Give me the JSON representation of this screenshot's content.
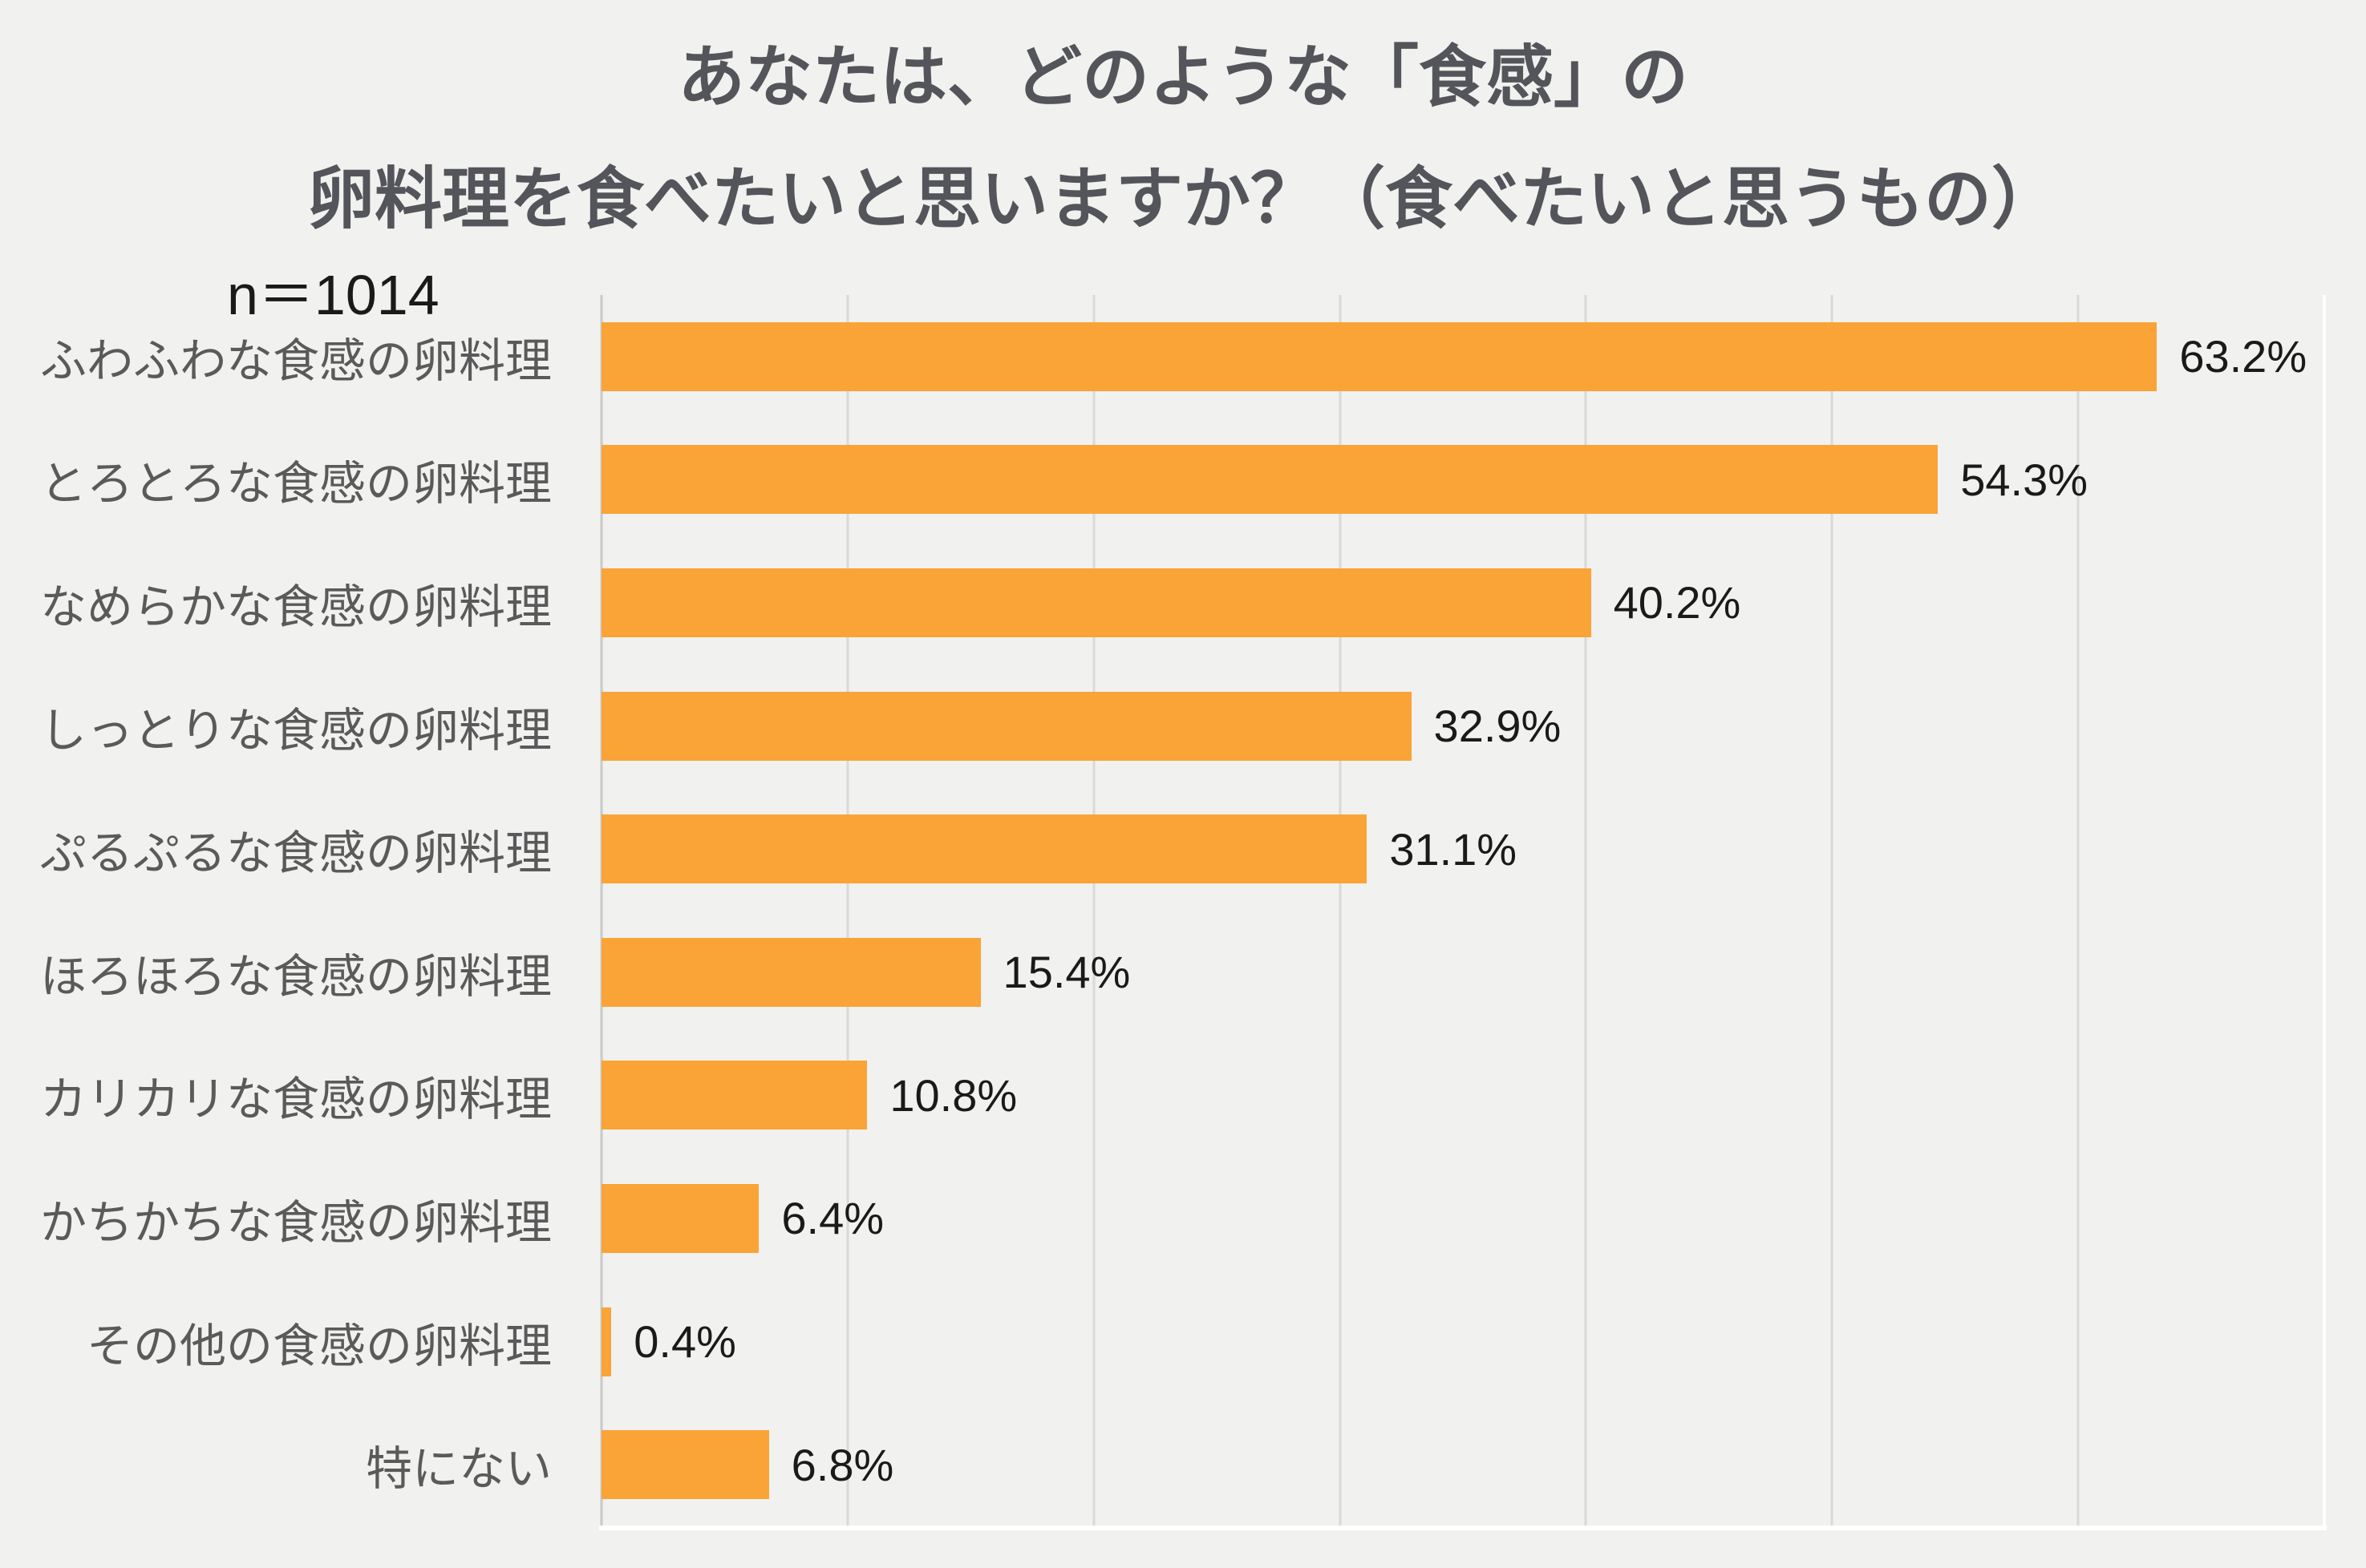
{
  "chart": {
    "title_line1": "あなたは、どのような「食感」の",
    "title_line2": "卵料理を食べたいと思いますか？（食べたいと思うもの）",
    "n_label": "n＝1014"
  },
  "chart_data": {
    "type": "bar",
    "orientation": "horizontal",
    "title": "あなたは、どのような「食感」の卵料理を食べたいと思いますか？（食べたいと思うもの）",
    "sample_size_label": "n＝1014",
    "sample_size": 1014,
    "categories": [
      "ふわふわな食感の卵料理",
      "とろとろな食感の卵料理",
      "なめらかな食感の卵料理",
      "しっとりな食感の卵料理",
      "ぷるぷるな食感の卵料理",
      "ほろほろな食感の卵料理",
      "カリカリな食感の卵料理",
      "かちかちな食感の卵料理",
      "その他の食感の卵料理",
      "特にない"
    ],
    "values": [
      63.2,
      54.3,
      40.2,
      32.9,
      31.1,
      15.4,
      10.8,
      6.4,
      0.4,
      6.8
    ],
    "value_labels": [
      "63.2%",
      "54.3%",
      "40.2%",
      "32.9%",
      "31.1%",
      "15.4%",
      "10.8%",
      "6.4%",
      "0.4%",
      "6.8%"
    ],
    "xlabel": "",
    "ylabel": "",
    "xlim": [
      0,
      70
    ],
    "gridline_step": 10,
    "grid": true,
    "legend": false,
    "colors": {
      "background": "#F1F1F0",
      "bar": "#FAA337",
      "gridline": "#D9D9D9",
      "axis_line": "#FFFFFF",
      "title_text": "#54555A",
      "category_text": "#5A5A5A",
      "value_text": "#1A1A1A"
    }
  }
}
